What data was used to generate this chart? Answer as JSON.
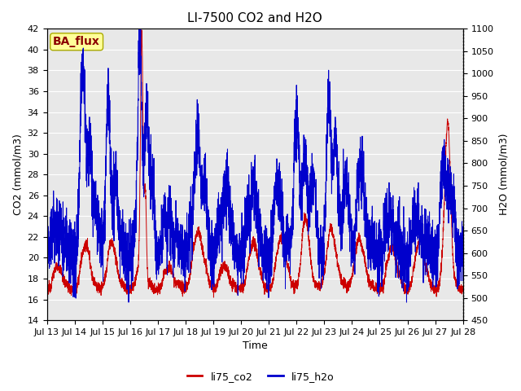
{
  "title": "LI-7500 CO2 and H2O",
  "xlabel": "Time",
  "ylabel_left": "CO2 (mmol/m3)",
  "ylabel_right": "H2O (mmol/m3)",
  "ylim_left": [
    14,
    42
  ],
  "ylim_right": [
    450,
    1100
  ],
  "yticks_left": [
    14,
    16,
    18,
    20,
    22,
    24,
    26,
    28,
    30,
    32,
    34,
    36,
    38,
    40,
    42
  ],
  "yticks_right": [
    450,
    500,
    550,
    600,
    650,
    700,
    750,
    800,
    850,
    900,
    950,
    1000,
    1050,
    1100
  ],
  "xtick_labels": [
    "Jul 13",
    "Jul 14",
    "Jul 15",
    "Jul 16",
    "Jul 17",
    "Jul 18",
    "Jul 19",
    "Jul 20",
    "Jul 21",
    "Jul 22",
    "Jul 23",
    "Jul 24",
    "Jul 25",
    "Jul 26",
    "Jul 27",
    "Jul 28"
  ],
  "color_co2": "#cc0000",
  "color_h2o": "#0000cc",
  "legend_label_co2": "li75_co2",
  "legend_label_h2o": "li75_h2o",
  "watermark_text": "BA_flux",
  "watermark_color": "#8b0000",
  "watermark_bg": "#ffff99",
  "background_color": "#e8e8e8",
  "title_fontsize": 11,
  "axis_label_fontsize": 9,
  "tick_fontsize": 8
}
